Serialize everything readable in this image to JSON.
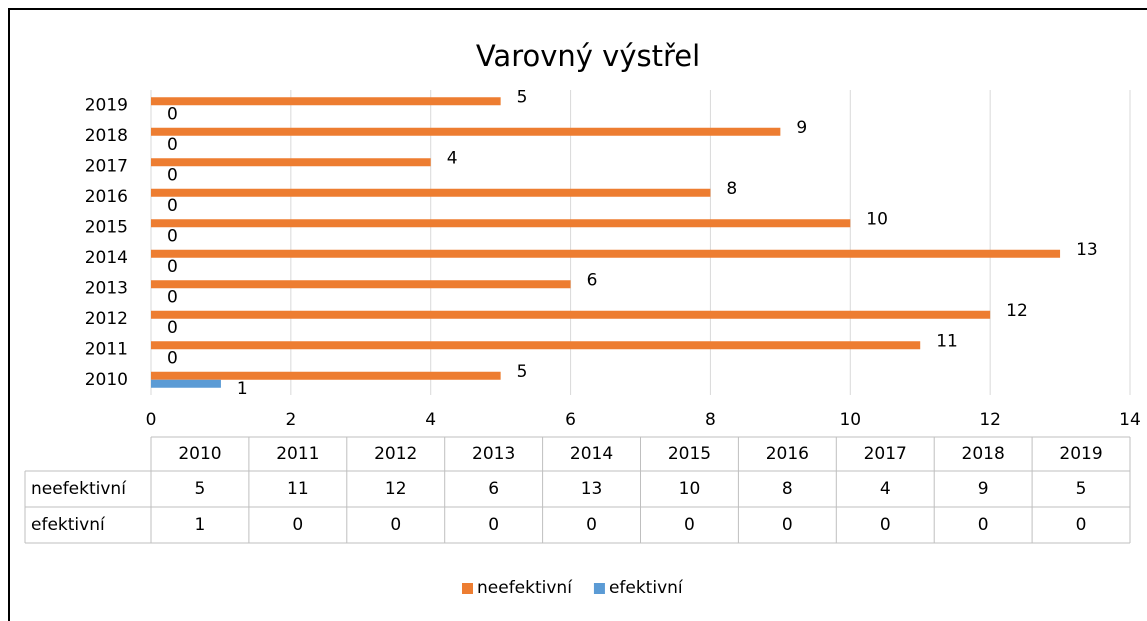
{
  "chart_data": {
    "type": "hbar",
    "title": "Varovný výstřel",
    "categories": [
      "2010",
      "2011",
      "2012",
      "2013",
      "2014",
      "2015",
      "2016",
      "2017",
      "2018",
      "2019"
    ],
    "series": [
      {
        "name": "neefektivní",
        "color": "#ED7D31",
        "values": [
          5,
          11,
          12,
          6,
          13,
          10,
          8,
          4,
          9,
          5
        ]
      },
      {
        "name": "efektivní",
        "color": "#5B9BD5",
        "values": [
          1,
          0,
          0,
          0,
          0,
          0,
          0,
          0,
          0,
          0
        ]
      }
    ],
    "xlim": [
      0,
      14
    ],
    "xticks": [
      0,
      2,
      4,
      6,
      8,
      10,
      12,
      14
    ],
    "grid": true,
    "legend": "bottom"
  }
}
